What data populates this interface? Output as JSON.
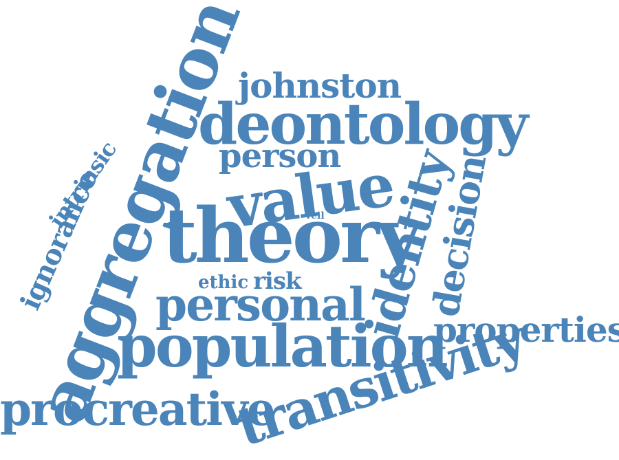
{
  "word_cloud": {
    "color": "#4a84b8",
    "words": [
      {
        "text": "theory"
      },
      {
        "text": "aggregation"
      },
      {
        "text": "population"
      },
      {
        "text": "transitivity"
      },
      {
        "text": "procreative"
      },
      {
        "text": "deontology"
      },
      {
        "text": "value"
      },
      {
        "text": "personal"
      },
      {
        "text": "identity"
      },
      {
        "text": "decision"
      },
      {
        "text": "properties"
      },
      {
        "text": "johnston"
      },
      {
        "text": "person"
      },
      {
        "text": "ignorance"
      },
      {
        "text": "intrinsic"
      },
      {
        "text": "ethic"
      },
      {
        "text": "risk"
      },
      {
        "text": "veil"
      }
    ]
  }
}
